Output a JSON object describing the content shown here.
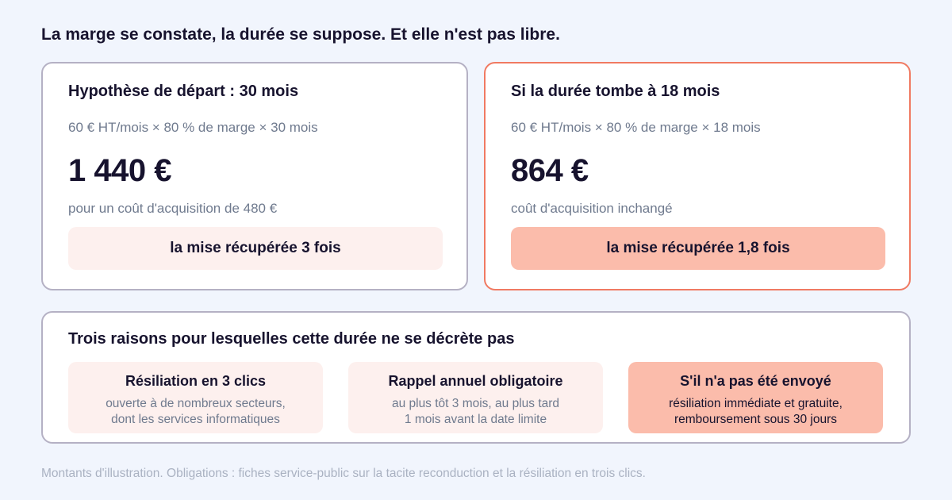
{
  "headline": "La marge se constate, la durée se suppose. Et elle n'est pas libre.",
  "scenarios": [
    {
      "title": "Hypothèse de départ : 30 mois",
      "formula": "60 € HT/mois × 80 % de marge × 30 mois",
      "amount": "1 440 €",
      "note": "pour un coût d'acquisition de 480 €",
      "pill": "la mise récupérée 3 fois"
    },
    {
      "title": "Si la durée tombe à 18 mois",
      "formula": "60 € HT/mois × 80 % de marge × 18 mois",
      "amount": "864 €",
      "note": "coût d'acquisition inchangé",
      "pill": "la mise récupérée 1,8 fois"
    }
  ],
  "reasons": {
    "title": "Trois raisons pour lesquelles cette durée ne se décrète pas",
    "items": [
      {
        "title": "Résiliation en 3 clics",
        "line1": "ouverte à de nombreux secteurs,",
        "line2": "dont les services informatiques"
      },
      {
        "title": "Rappel annuel obligatoire",
        "line1": "au plus tôt 3 mois, au plus tard",
        "line2": "1 mois avant la date limite"
      },
      {
        "title": "S'il n'a pas été envoyé",
        "line1": "résiliation immédiate et gratuite,",
        "line2": "remboursement sous 30 jours"
      }
    ]
  },
  "footnote": "Montants d'illustration. Obligations : fiches service-public sur la tacite reconduction et la résiliation en trois clics.",
  "colors": {
    "background": "#f1f5fd",
    "accent_border": "#f07a62",
    "accent_fill": "#fbbcab",
    "light_fill": "#fdf0ee"
  }
}
